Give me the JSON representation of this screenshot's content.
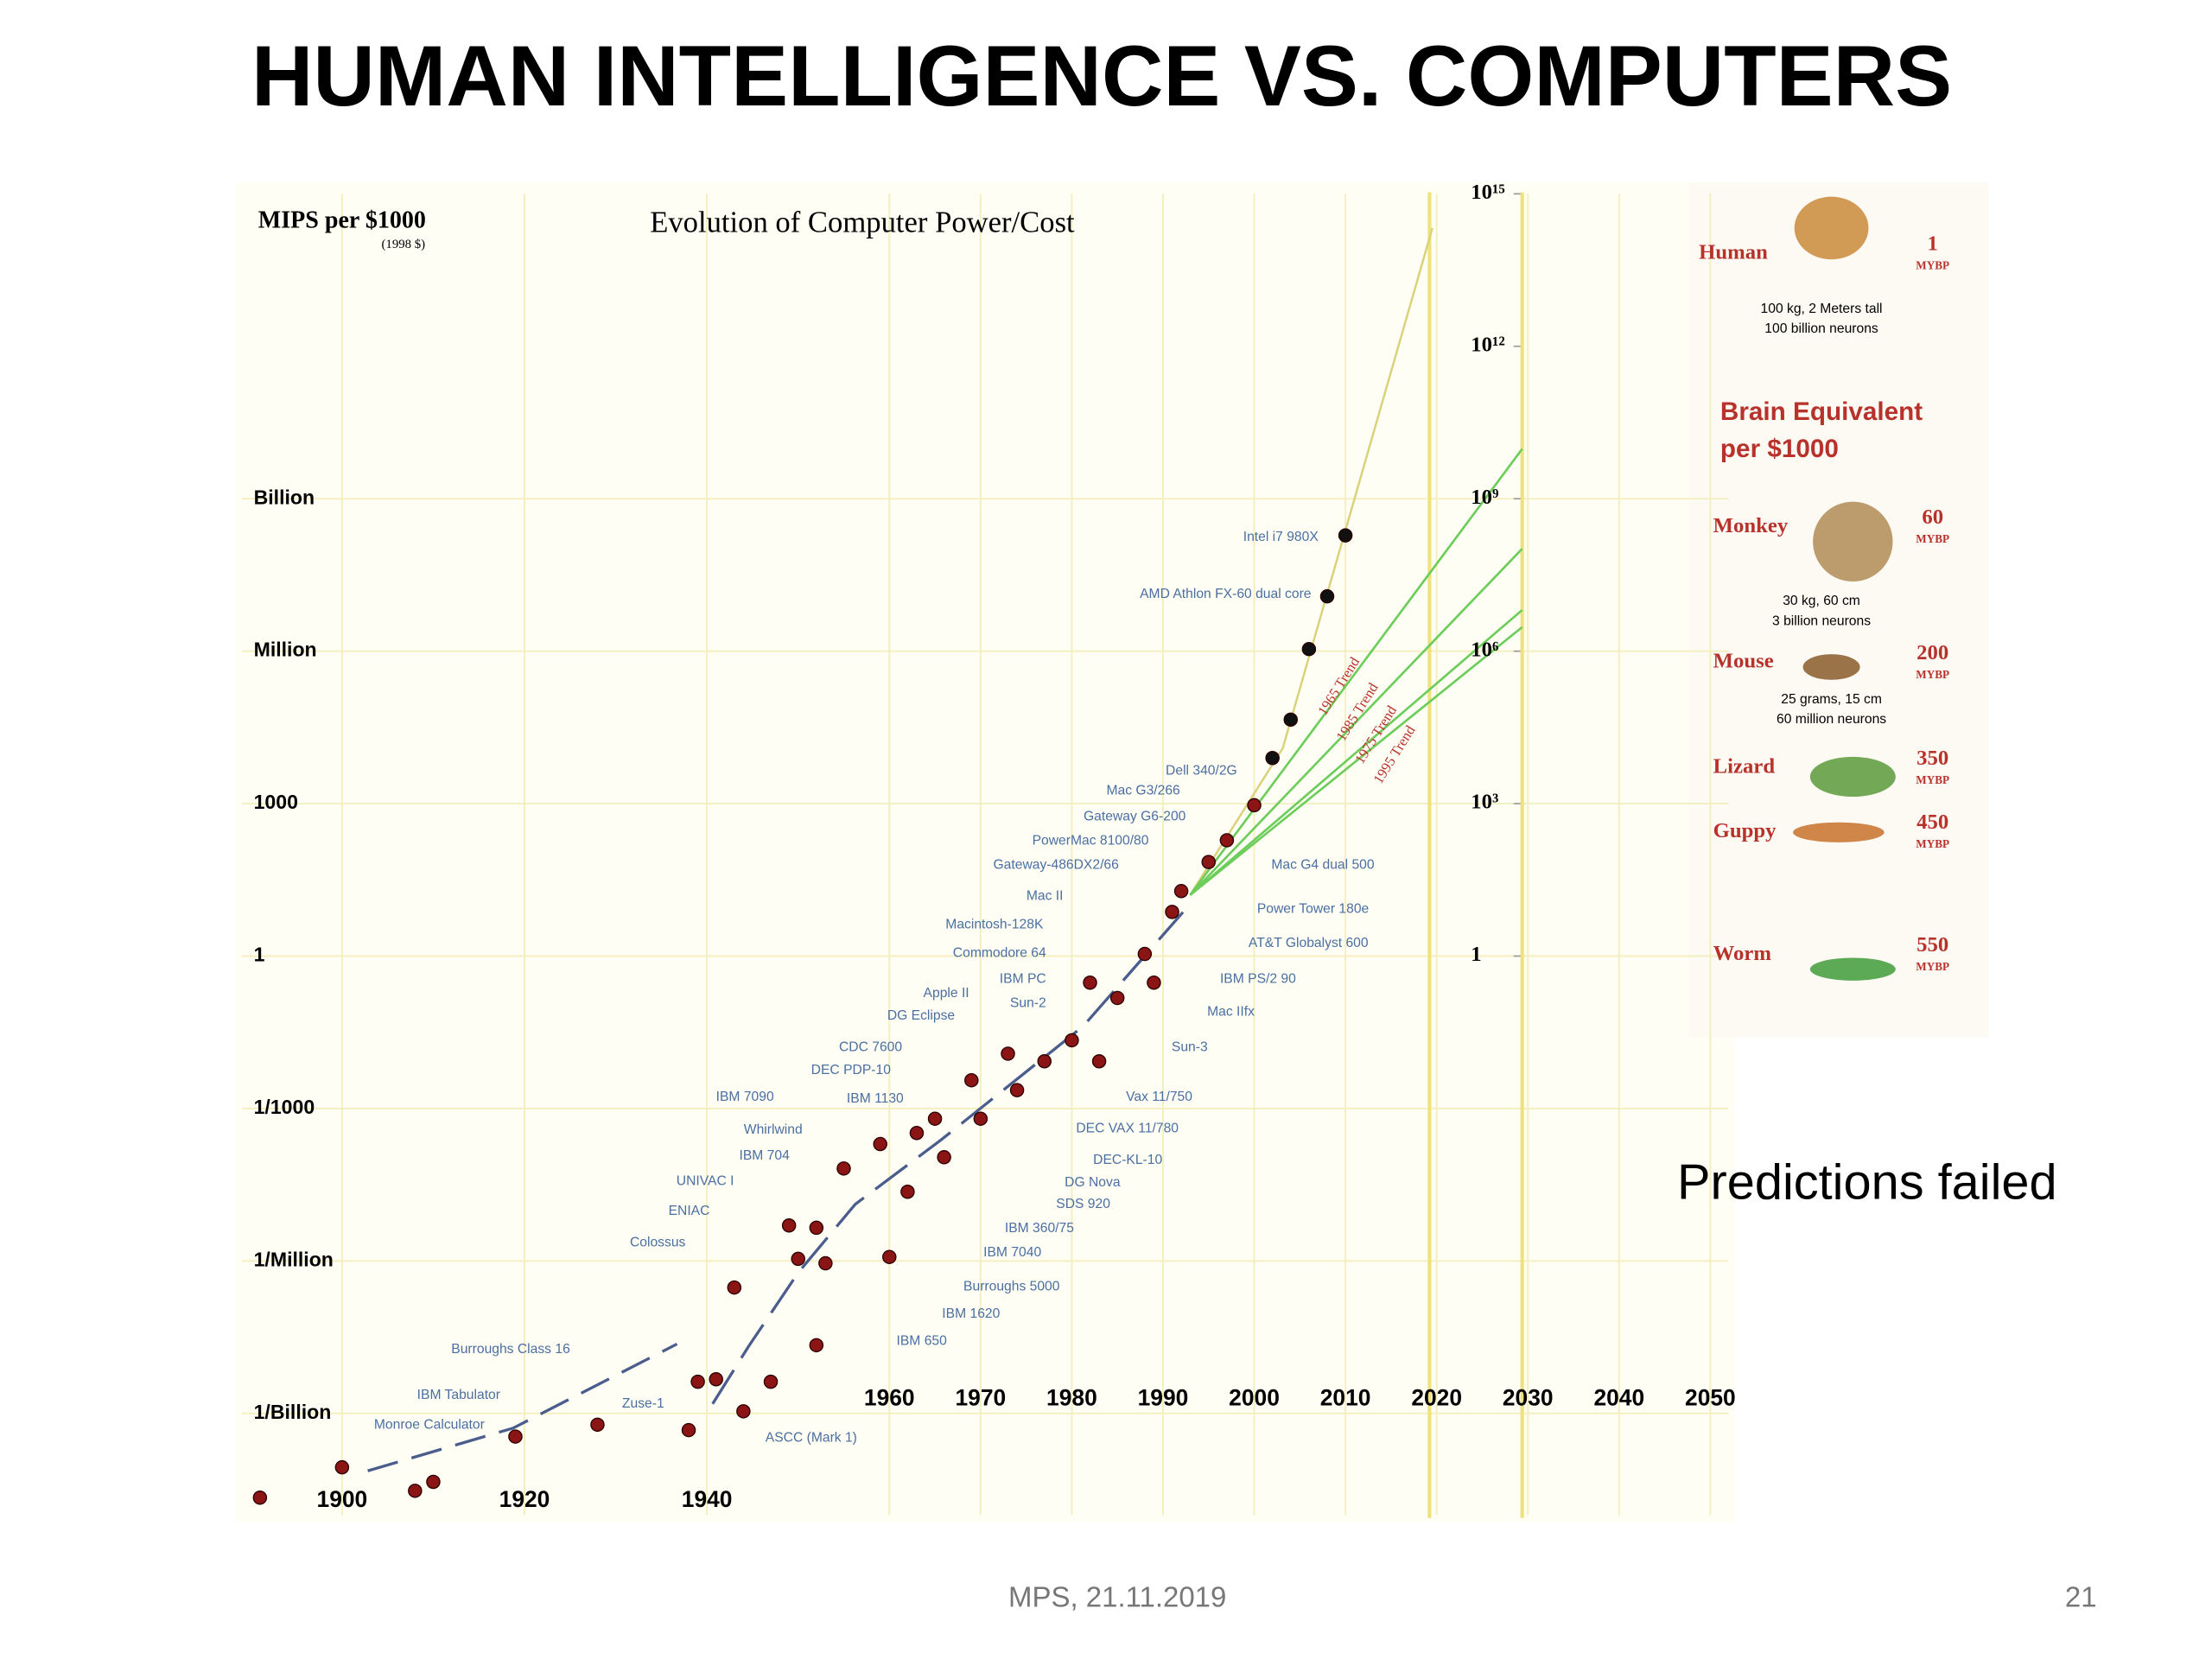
{
  "slide": {
    "title": "HUMAN INTELLIGENCE VS. COMPUTERS",
    "note": "Predictions failed",
    "footer": {
      "date": "MPS, 21.11.2019",
      "page": "21"
    }
  },
  "chart_data": {
    "type": "scatter",
    "title": "Evolution of Computer Power/Cost",
    "y_label": "MIPS per $1000",
    "y_label_unit": "(1998 $)",
    "log_y": true,
    "grid": true,
    "xlim": [
      1889,
      2052
    ],
    "ylim": [
      1e-11,
      1000000000000000.0
    ],
    "y2lim": [
      1e-11,
      1000000000000000.0
    ],
    "xticks": [
      1900,
      1920,
      1940,
      1960,
      1970,
      1980,
      1990,
      2000,
      2010,
      2020,
      2030,
      2040,
      2050
    ],
    "yticks": [
      {
        "value": 1000000000,
        "label": "Billion"
      },
      {
        "value": 1000000,
        "label": "Million"
      },
      1000,
      1,
      {
        "value": 0.001,
        "label": "1/1000"
      },
      {
        "value": 1e-06,
        "label": "1/Million"
      },
      {
        "value": 1e-09,
        "label": "1/Billion"
      }
    ],
    "y2ticks": [
      {
        "value": 1000000000000000.0,
        "label": "10¹⁵"
      },
      {
        "value": 1000000000000.0,
        "label": "10¹²"
      },
      {
        "value": 1000000000.0,
        "label": "10⁹"
      },
      {
        "value": 1000000.0,
        "label": "10⁶"
      },
      {
        "value": 1000,
        "label": "10³"
      },
      1
    ],
    "series": [
      {
        "color": "#8b1414",
        "x": [
          1891,
          1900,
          1908,
          1910,
          1919,
          1928,
          1938,
          1939,
          1941,
          1944,
          1947,
          1952,
          1943,
          1949,
          1952,
          1950,
          1953,
          1960,
          1955,
          1959,
          1962,
          1963,
          1965,
          1966,
          1969,
          1970,
          1973,
          1974,
          1977,
          1980,
          1982,
          1983,
          1985,
          1988,
          1989,
          1991,
          1992,
          1995,
          1997,
          2000
        ],
        "values": [
          2.2e-11,
          8.7e-11,
          3e-11,
          4.5e-11,
          3.5e-10,
          6e-10,
          4.7e-10,
          4.2e-09,
          4.7e-09,
          1.1e-09,
          4.2e-09,
          2.2e-08,
          3e-07,
          5e-06,
          4.5e-06,
          1.1e-06,
          9e-07,
          1.2e-06,
          6.6e-05,
          0.0002,
          2.3e-05,
          0.00033,
          0.00063,
          0.00011,
          0.0036,
          0.00063,
          0.012,
          0.0023,
          0.0085,
          0.022,
          0.3,
          0.0085,
          0.15,
          1.1,
          0.3,
          7.4,
          19,
          71,
          190,
          930
        ]
      },
      {
        "color": "#111111",
        "x": [
          2002,
          2004,
          2006,
          2008,
          2010
        ],
        "values": [
          7900,
          45000,
          1100000,
          12000000,
          190000000
        ]
      }
    ],
    "trends": [
      "1965 Trend",
      "1985 Trend",
      "1975 Trend",
      "1995 Trend"
    ],
    "annotations": [
      "Intel i7 980X",
      "AMD Athlon FX-60 dual core",
      "Dell 340/2G",
      "Mac G3/266",
      "Gateway G6-200",
      "PowerMac 8100/80",
      "Gateway-486DX2/66",
      "Mac II",
      "Macintosh-128K",
      "Commodore 64",
      "IBM PC",
      "Apple II",
      "Sun-2",
      "DG Eclipse",
      "CDC 7600",
      "DEC PDP-10",
      "IBM 7090",
      "IBM 1130",
      "Whirlwind",
      "IBM 704",
      "UNIVAC I",
      "ENIAC",
      "Colossus",
      "Burroughs Class 16",
      "IBM Tabulator",
      "Monroe Calculator",
      "Zuse-1",
      "ASCC (Mark 1)",
      "Mac G4 dual 500",
      "Power Tower 180e",
      "AT&T Globalyst 600",
      "IBM PS/2 90",
      "Mac IIfx",
      "Sun-3",
      "Vax 11/750",
      "DEC VAX 11/780",
      "DEC-KL-10",
      "DG Nova",
      "SDS 920",
      "IBM 360/75",
      "IBM 7040",
      "Burroughs 5000",
      "IBM 1620",
      "IBM 650"
    ]
  },
  "panel": {
    "heading": [
      "Brain Equivalent",
      "per $1000"
    ],
    "animals": [
      {
        "name": "Human",
        "mybp": 1,
        "unit": "MYBP",
        "description": [
          "100 kg, 2 Meters tall",
          "100 billion neurons"
        ]
      },
      {
        "name": "Monkey",
        "mybp": 60,
        "unit": "MYBP",
        "description": [
          "30 kg, 60 cm",
          "3 billion neurons"
        ]
      },
      {
        "name": "Mouse",
        "mybp": 200,
        "unit": "MYBP",
        "description": [
          "25 grams, 15 cm",
          "60 million neurons"
        ]
      },
      {
        "name": "Lizard",
        "mybp": 350,
        "unit": "MYBP",
        "description": []
      },
      {
        "name": "Guppy",
        "mybp": 450,
        "unit": "MYBP",
        "description": []
      },
      {
        "name": "Worm",
        "mybp": 550,
        "unit": "MYBP",
        "description": []
      }
    ]
  }
}
